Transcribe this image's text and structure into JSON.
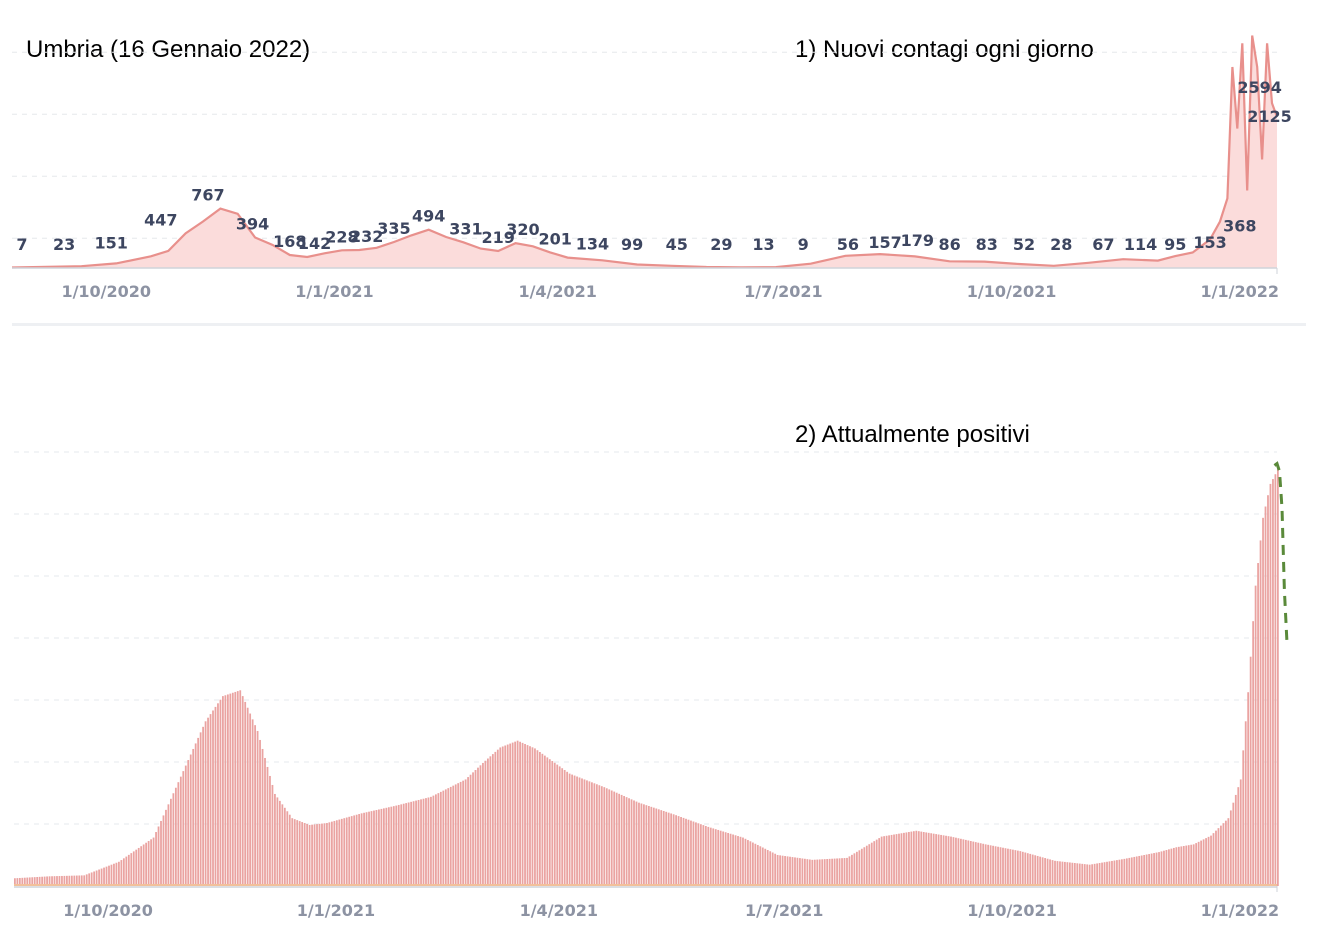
{
  "header": {
    "region_title": "Umbria (16 Gennaio 2022)"
  },
  "chart_data": [
    {
      "type": "area",
      "title": "1) Nuovi contagi ogni giorno",
      "color": "#e8908c",
      "fill_color": "#fbdcdb",
      "grid": true,
      "xlim": [
        "2020-08-24",
        "2022-01-16"
      ],
      "ylim": [
        0,
        3200
      ],
      "x_ticks": [
        {
          "date": "2020-10-01",
          "label": "1/10/2020"
        },
        {
          "date": "2021-01-01",
          "label": "1/1/2021"
        },
        {
          "date": "2021-04-01",
          "label": "1/4/2021"
        },
        {
          "date": "2021-07-01",
          "label": "1/7/2021"
        },
        {
          "date": "2021-10-01",
          "label": "1/10/2021"
        },
        {
          "date": "2022-01-01",
          "label": "1/1/2022"
        }
      ],
      "x": [
        "2020-08-24",
        "2020-09-07",
        "2020-09-21",
        "2020-10-05",
        "2020-10-19",
        "2020-10-26",
        "2020-11-02",
        "2020-11-09",
        "2020-11-16",
        "2020-11-23",
        "2020-11-30",
        "2020-12-07",
        "2020-12-14",
        "2020-12-21",
        "2020-12-28",
        "2021-01-04",
        "2021-01-11",
        "2021-01-18",
        "2021-01-25",
        "2021-02-01",
        "2021-02-08",
        "2021-02-15",
        "2021-02-22",
        "2021-03-01",
        "2021-03-08",
        "2021-03-15",
        "2021-03-22",
        "2021-03-29",
        "2021-04-05",
        "2021-04-19",
        "2021-05-03",
        "2021-05-17",
        "2021-05-31",
        "2021-06-14",
        "2021-06-28",
        "2021-07-12",
        "2021-07-26",
        "2021-08-09",
        "2021-08-23",
        "2021-09-06",
        "2021-09-20",
        "2021-10-04",
        "2021-10-18",
        "2021-11-01",
        "2021-11-15",
        "2021-11-29",
        "2021-12-06",
        "2021-12-13",
        "2021-12-20",
        "2021-12-24",
        "2021-12-27",
        "2021-12-29",
        "2021-12-31",
        "2022-01-02",
        "2022-01-04",
        "2022-01-06",
        "2022-01-08",
        "2022-01-10",
        "2022-01-12",
        "2022-01-14",
        "2022-01-16"
      ],
      "values": [
        7,
        15,
        23,
        60,
        151,
        220,
        447,
        600,
        767,
        700,
        394,
        300,
        168,
        142,
        190,
        228,
        232,
        260,
        335,
        420,
        494,
        400,
        331,
        250,
        219,
        320,
        280,
        201,
        134,
        99,
        45,
        29,
        13,
        9,
        12,
        56,
        157,
        179,
        150,
        86,
        83,
        52,
        28,
        67,
        114,
        95,
        153,
        200,
        368,
        600,
        900,
        2594,
        1800,
        2900,
        1000,
        3000,
        2594,
        1400,
        2900,
        2125,
        1950
      ],
      "data_labels": [
        {
          "date": "2020-08-28",
          "text": "7"
        },
        {
          "date": "2020-09-14",
          "text": "23"
        },
        {
          "date": "2020-10-03",
          "text": "151"
        },
        {
          "date": "2020-10-23",
          "text": "447"
        },
        {
          "date": "2020-11-11",
          "text": "767"
        },
        {
          "date": "2020-11-29",
          "text": "394"
        },
        {
          "date": "2020-12-14",
          "text": "168"
        },
        {
          "date": "2020-12-24",
          "text": "142"
        },
        {
          "date": "2021-01-04",
          "text": "228"
        },
        {
          "date": "2021-01-14",
          "text": "232"
        },
        {
          "date": "2021-01-25",
          "text": "335"
        },
        {
          "date": "2021-02-08",
          "text": "494"
        },
        {
          "date": "2021-02-23",
          "text": "331"
        },
        {
          "date": "2021-03-08",
          "text": "219"
        },
        {
          "date": "2021-03-18",
          "text": "320"
        },
        {
          "date": "2021-03-31",
          "text": "201"
        },
        {
          "date": "2021-04-15",
          "text": "134"
        },
        {
          "date": "2021-05-01",
          "text": "99"
        },
        {
          "date": "2021-05-19",
          "text": "45"
        },
        {
          "date": "2021-06-06",
          "text": "29"
        },
        {
          "date": "2021-06-23",
          "text": "13"
        },
        {
          "date": "2021-07-09",
          "text": "9"
        },
        {
          "date": "2021-07-27",
          "text": "56"
        },
        {
          "date": "2021-08-11",
          "text": "157"
        },
        {
          "date": "2021-08-24",
          "text": "179"
        },
        {
          "date": "2021-09-06",
          "text": "86"
        },
        {
          "date": "2021-09-21",
          "text": "83"
        },
        {
          "date": "2021-10-06",
          "text": "52"
        },
        {
          "date": "2021-10-21",
          "text": "28"
        },
        {
          "date": "2021-11-07",
          "text": "67"
        },
        {
          "date": "2021-11-22",
          "text": "114"
        },
        {
          "date": "2021-12-06",
          "text": "95"
        },
        {
          "date": "2021-12-20",
          "text": "153"
        },
        {
          "date": "2022-01-01",
          "text": "368"
        },
        {
          "date": "2022-01-09",
          "text": "2594"
        },
        {
          "date": "2022-01-13",
          "text": "2125"
        }
      ]
    },
    {
      "type": "bar",
      "title": "2) Attualmente positivi",
      "color": "#eaa3a1",
      "trend_line_color": "#5a8a3a",
      "baseline_color": "#f2c09a",
      "grid": true,
      "xlim": [
        "2020-08-24",
        "2022-01-16"
      ],
      "ylim": [
        0,
        45000
      ],
      "x_ticks": [
        {
          "date": "2020-10-01",
          "label": "1/10/2020"
        },
        {
          "date": "2021-01-01",
          "label": "1/1/2021"
        },
        {
          "date": "2021-04-01",
          "label": "1/4/2021"
        },
        {
          "date": "2021-07-01",
          "label": "1/7/2021"
        },
        {
          "date": "2021-10-01",
          "label": "1/10/2021"
        },
        {
          "date": "2022-01-01",
          "label": "1/1/2022"
        }
      ],
      "x": [
        "2020-08-24",
        "2020-09-07",
        "2020-09-21",
        "2020-10-05",
        "2020-10-19",
        "2020-11-02",
        "2020-11-09",
        "2020-11-16",
        "2020-11-23",
        "2020-11-30",
        "2020-12-07",
        "2020-12-14",
        "2020-12-21",
        "2020-12-28",
        "2021-01-11",
        "2021-01-25",
        "2021-02-08",
        "2021-02-22",
        "2021-03-01",
        "2021-03-08",
        "2021-03-15",
        "2021-03-22",
        "2021-04-05",
        "2021-04-19",
        "2021-05-03",
        "2021-05-17",
        "2021-05-31",
        "2021-06-14",
        "2021-06-28",
        "2021-07-12",
        "2021-07-26",
        "2021-08-09",
        "2021-08-23",
        "2021-09-06",
        "2021-09-20",
        "2021-10-04",
        "2021-10-18",
        "2021-11-01",
        "2021-11-15",
        "2021-11-29",
        "2021-12-06",
        "2021-12-13",
        "2021-12-20",
        "2021-12-27",
        "2022-01-01",
        "2022-01-04",
        "2022-01-07",
        "2022-01-10",
        "2022-01-13",
        "2022-01-16"
      ],
      "values": [
        800,
        1000,
        1100,
        2500,
        5000,
        13000,
        17000,
        19600,
        20200,
        16000,
        9500,
        7000,
        6300,
        6500,
        7500,
        8300,
        9200,
        11000,
        12700,
        14300,
        15000,
        14200,
        11600,
        10200,
        8600,
        7400,
        6100,
        5000,
        3200,
        2700,
        2900,
        5100,
        5700,
        5100,
        4300,
        3600,
        2600,
        2200,
        2800,
        3500,
        4000,
        4300,
        5200,
        7000,
        11000,
        20000,
        31000,
        38000,
        41500,
        43000
      ],
      "trend_line": [
        {
          "date": "2022-01-15",
          "value": 43400
        },
        {
          "date": "2022-01-16",
          "value": 43600
        },
        {
          "date": "2022-01-17",
          "value": 42800
        },
        {
          "date": "2022-01-18",
          "value": 39000
        },
        {
          "date": "2022-01-19",
          "value": 30500
        },
        {
          "date": "2022-01-20",
          "value": 25300
        }
      ]
    }
  ]
}
